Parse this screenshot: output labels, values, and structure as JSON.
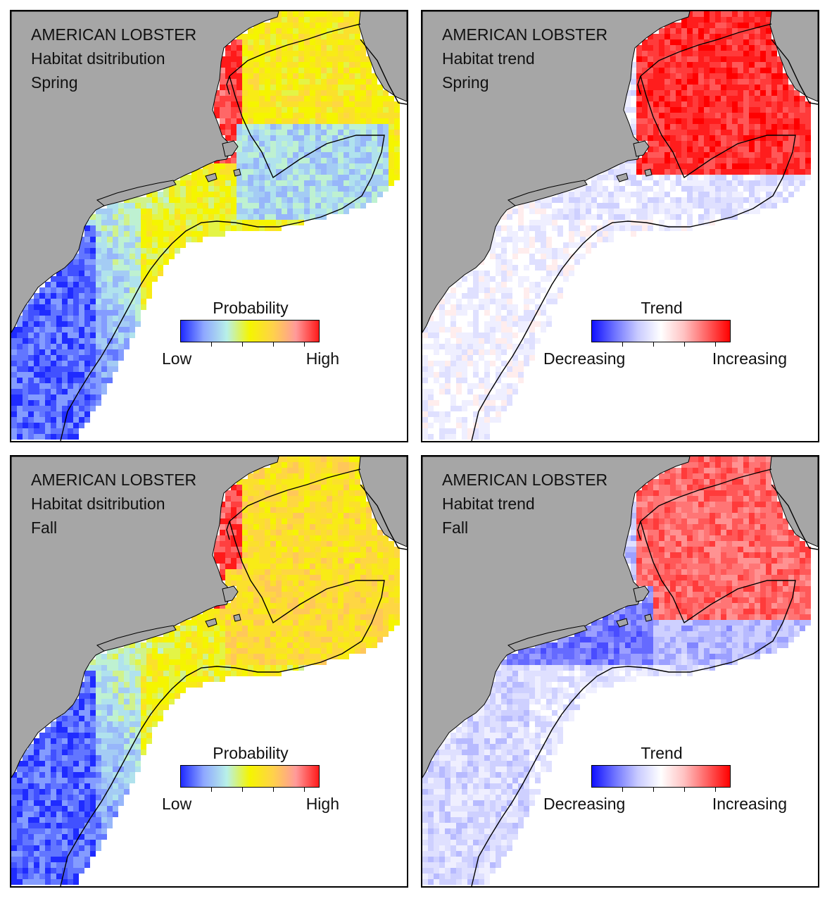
{
  "panels": [
    {
      "id": "spring-distribution",
      "lines": [
        "AMERICAN LOBSTER",
        "Habitat dsitribution",
        "Spring"
      ],
      "legend": {
        "title": "Probability",
        "low": "Low",
        "high": "High",
        "kind": "prob"
      },
      "scheme": "prob",
      "season": "spring"
    },
    {
      "id": "spring-trend",
      "lines": [
        "AMERICAN LOBSTER",
        "Habitat trend",
        "Spring"
      ],
      "legend": {
        "title": "Trend",
        "low": "Decreasing",
        "high": "Increasing",
        "kind": "trend"
      },
      "scheme": "trend",
      "season": "spring"
    },
    {
      "id": "fall-distribution",
      "lines": [
        "AMERICAN LOBSTER",
        "Habitat dsitribution",
        "Fall"
      ],
      "legend": {
        "title": "Probability",
        "low": "Low",
        "high": "High",
        "kind": "prob"
      },
      "scheme": "prob",
      "season": "fall"
    },
    {
      "id": "fall-trend",
      "lines": [
        "AMERICAN LOBSTER",
        "Habitat trend",
        "Fall"
      ],
      "legend": {
        "title": "Trend",
        "low": "Decreasing",
        "high": "Increasing",
        "kind": "trend"
      },
      "scheme": "trend",
      "season": "fall"
    }
  ],
  "colors": {
    "land": "#a6a6a6",
    "prob_gradient": [
      "#1f2bff",
      "#8fa8ff",
      "#b8f0e8",
      "#f5f500",
      "#ffd24a",
      "#ff9a9a",
      "#ff1a1a"
    ],
    "trend_gradient": [
      "#1010ff",
      "#6f74ff",
      "#c9cbff",
      "#ffffff",
      "#ffc2c2",
      "#ff6262",
      "#ff0000"
    ]
  }
}
